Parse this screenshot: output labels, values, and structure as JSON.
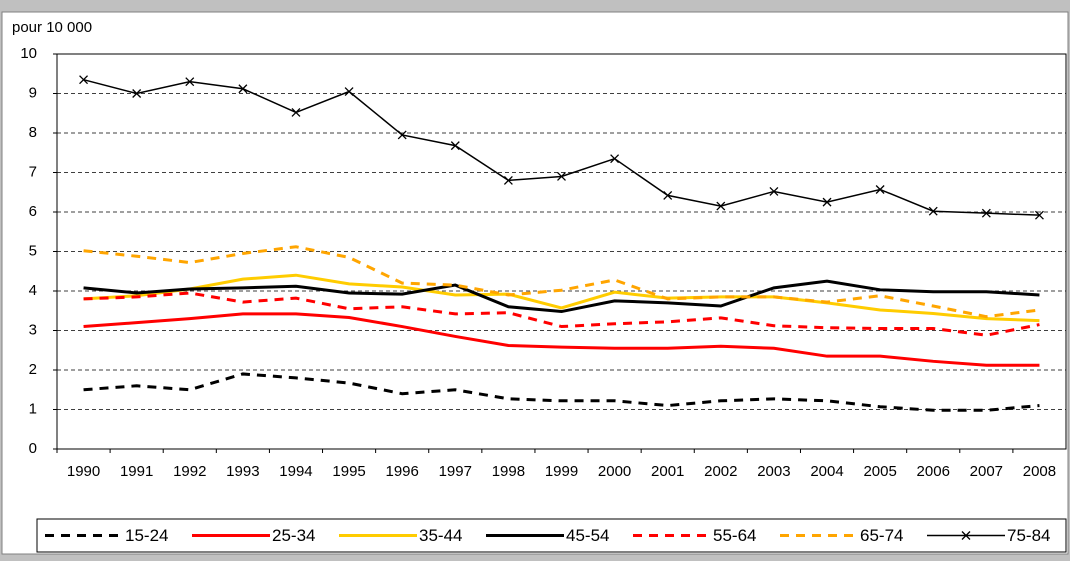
{
  "chart_data": {
    "type": "line",
    "y_axis_label": "pour 10 000",
    "categories": [
      "1990",
      "1991",
      "1992",
      "1993",
      "1994",
      "1995",
      "1996",
      "1997",
      "1998",
      "1999",
      "2000",
      "2001",
      "2002",
      "2003",
      "2004",
      "2005",
      "2006",
      "2007",
      "2008"
    ],
    "ylim": [
      0,
      10
    ],
    "yticks": [
      0,
      1,
      2,
      3,
      4,
      5,
      6,
      7,
      8,
      9,
      10
    ],
    "grid": true,
    "legend": "bottom",
    "series": [
      {
        "name": "15-24",
        "color": "#000000",
        "dashed": true,
        "values": [
          1.5,
          1.6,
          1.5,
          1.9,
          1.8,
          1.67,
          1.4,
          1.5,
          1.27,
          1.22,
          1.22,
          1.1,
          1.22,
          1.27,
          1.22,
          1.07,
          0.98,
          0.98,
          1.1
        ]
      },
      {
        "name": "25-34",
        "color": "#ff0000",
        "dashed": false,
        "values": [
          3.1,
          3.2,
          3.3,
          3.42,
          3.42,
          3.33,
          3.1,
          2.85,
          2.62,
          2.58,
          2.55,
          2.55,
          2.6,
          2.55,
          2.35,
          2.35,
          2.22,
          2.12,
          2.12
        ]
      },
      {
        "name": "35-44",
        "color": "#ffcc00",
        "dashed": false,
        "values": [
          3.8,
          3.88,
          4.05,
          4.3,
          4.4,
          4.18,
          4.1,
          3.9,
          3.92,
          3.57,
          3.97,
          3.82,
          3.85,
          3.85,
          3.7,
          3.52,
          3.43,
          3.3,
          3.25
        ]
      },
      {
        "name": "45-54",
        "color": "#000000",
        "dashed": false,
        "values": [
          4.08,
          3.95,
          4.05,
          4.08,
          4.12,
          3.95,
          3.92,
          4.15,
          3.6,
          3.48,
          3.75,
          3.7,
          3.62,
          4.08,
          4.25,
          4.03,
          3.98,
          3.98,
          3.9
        ]
      },
      {
        "name": "55-64",
        "color": "#ff0000",
        "dashed": true,
        "values": [
          3.8,
          3.85,
          3.95,
          3.72,
          3.82,
          3.55,
          3.6,
          3.42,
          3.45,
          3.1,
          3.17,
          3.22,
          3.32,
          3.12,
          3.07,
          3.05,
          3.05,
          2.88,
          3.15
        ]
      },
      {
        "name": "65-74",
        "color": "#ffa500",
        "dashed": true,
        "values": [
          5.02,
          4.88,
          4.72,
          4.95,
          5.12,
          4.85,
          4.2,
          4.15,
          3.9,
          4.02,
          4.28,
          3.8,
          3.85,
          3.85,
          3.72,
          3.88,
          3.62,
          3.35,
          3.52
        ]
      },
      {
        "name": "75-84",
        "color": "#000000",
        "dashed": false,
        "marker": "x",
        "values": [
          9.35,
          9.0,
          9.3,
          9.12,
          8.52,
          9.05,
          7.95,
          7.68,
          6.8,
          6.9,
          7.35,
          6.42,
          6.15,
          6.52,
          6.25,
          6.57,
          6.02,
          5.97,
          5.92
        ]
      }
    ]
  }
}
